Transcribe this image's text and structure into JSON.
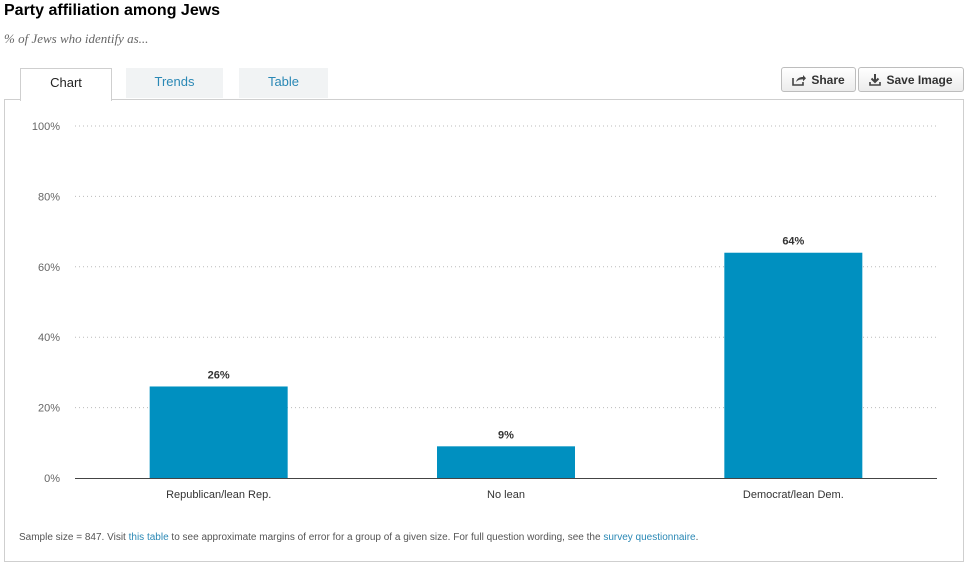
{
  "header": {
    "title": "Party affiliation among Jews",
    "subtitle": "% of Jews who identify as..."
  },
  "tabs": [
    {
      "label": "Chart",
      "active": true
    },
    {
      "label": "Trends",
      "active": false
    },
    {
      "label": "Table",
      "active": false
    }
  ],
  "toolbar": {
    "share_label": "Share",
    "share_icon": "share-icon",
    "save_label": "Save Image",
    "save_icon": "download-icon"
  },
  "colors": {
    "bar": "#0090c0",
    "link": "#2a88b5"
  },
  "chart_data": {
    "type": "bar",
    "categories": [
      "Republican/lean Rep.",
      "No lean",
      "Democrat/lean Dem."
    ],
    "values": [
      26,
      9,
      64
    ],
    "value_labels": [
      "26%",
      "9%",
      "64%"
    ],
    "ylim": [
      0,
      100
    ],
    "yticks": [
      0,
      20,
      40,
      60,
      80,
      100
    ],
    "ytick_labels": [
      "0%",
      "20%",
      "40%",
      "60%",
      "80%",
      "100%"
    ],
    "grid": true,
    "legend": "none"
  },
  "footnote": {
    "part1": "Sample size = 847. Visit ",
    "link1": "this table",
    "part2": " to see approximate margins of error for a group of a given size. For full question wording, see the ",
    "link2": "survey questionnaire",
    "part3": "."
  }
}
